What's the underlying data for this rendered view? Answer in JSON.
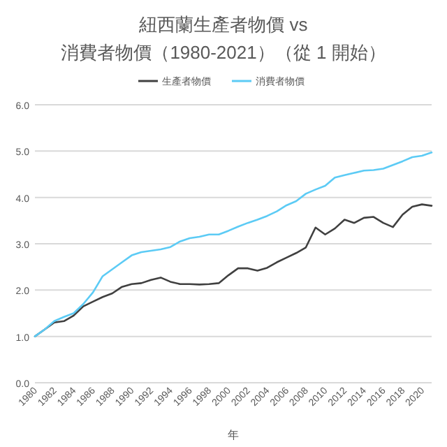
{
  "chart_data": {
    "type": "line",
    "title": "紐西蘭生產者物價 vs 消費者物價（1980-2021）（從 1 開始）",
    "xlabel": "年",
    "x": [
      1980,
      1981,
      1982,
      1983,
      1984,
      1985,
      1986,
      1987,
      1988,
      1989,
      1990,
      1991,
      1992,
      1993,
      1994,
      1995,
      1996,
      1997,
      1998,
      1999,
      2000,
      2001,
      2002,
      2003,
      2004,
      2005,
      2006,
      2007,
      2008,
      2009,
      2010,
      2011,
      2012,
      2013,
      2014,
      2015,
      2016,
      2017,
      2018,
      2019,
      2020,
      2021
    ],
    "series": [
      {
        "name": "生產者物價",
        "color": "#404040",
        "values": [
          1.0,
          1.15,
          1.3,
          1.33,
          1.45,
          1.65,
          1.75,
          1.85,
          1.93,
          2.07,
          2.13,
          2.15,
          2.22,
          2.27,
          2.18,
          2.13,
          2.13,
          2.12,
          2.13,
          2.15,
          2.32,
          2.47,
          2.47,
          2.42,
          2.48,
          2.6,
          2.7,
          2.8,
          2.92,
          3.35,
          3.2,
          3.33,
          3.52,
          3.45,
          3.56,
          3.58,
          3.45,
          3.36,
          3.63,
          3.8,
          3.85,
          3.82
        ]
      },
      {
        "name": "消費者物價",
        "color": "#5ccbf5",
        "values": [
          1.0,
          1.15,
          1.33,
          1.42,
          1.5,
          1.7,
          1.95,
          2.3,
          2.45,
          2.6,
          2.75,
          2.82,
          2.85,
          2.88,
          2.93,
          3.05,
          3.12,
          3.15,
          3.2,
          3.2,
          3.28,
          3.37,
          3.45,
          3.52,
          3.6,
          3.7,
          3.83,
          3.92,
          4.08,
          4.17,
          4.25,
          4.43,
          4.48,
          4.53,
          4.58,
          4.59,
          4.62,
          4.7,
          4.78,
          4.87,
          4.9,
          4.97
        ]
      }
    ],
    "xlim": [
      1980,
      2021
    ],
    "xticks": [
      1980,
      1982,
      1984,
      1986,
      1988,
      1990,
      1992,
      1994,
      1996,
      1998,
      2000,
      2002,
      2004,
      2006,
      2008,
      2010,
      2012,
      2014,
      2016,
      2018,
      2020
    ],
    "ylim": [
      0,
      6
    ],
    "yticks": [
      {
        "value": 0,
        "label": "0.0"
      },
      {
        "value": 1,
        "label": "1.0"
      },
      {
        "value": 2,
        "label": "2.0"
      },
      {
        "value": 3,
        "label": "3.0"
      },
      {
        "value": 4,
        "label": "4.0"
      },
      {
        "value": 5,
        "label": "5.0"
      },
      {
        "value": 6,
        "label": "6.0"
      }
    ],
    "grid": "y",
    "legend": "top",
    "marker": "none",
    "line_style": "solid"
  }
}
